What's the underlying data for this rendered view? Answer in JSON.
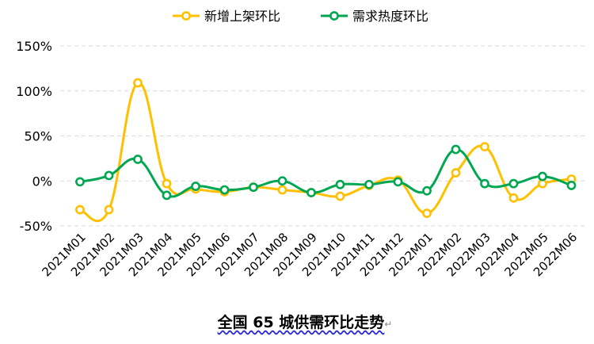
{
  "chart_data": {
    "type": "line",
    "title": "全国 65 城供需环比走势",
    "categories": [
      "2021M01",
      "2021M02",
      "2021M03",
      "2021M04",
      "2021M05",
      "2021M06",
      "2021M07",
      "2021M08",
      "2021M09",
      "2021M10",
      "2021M11",
      "2021M12",
      "2022M01",
      "2022M02",
      "2022M03",
      "2022M04",
      "2022M05",
      "2022M06"
    ],
    "yticks": [
      "150%",
      "100%",
      "50%",
      "0%",
      "-50%"
    ],
    "ylim": [
      -50,
      150
    ],
    "grid": true,
    "legend_position": "top",
    "series": [
      {
        "name": "新增上架环比",
        "color": "#FFC000",
        "values": [
          -32,
          -32,
          109,
          -3,
          -9,
          -12,
          -7,
          -10,
          -13,
          -17,
          -5,
          1,
          -36,
          9,
          38,
          -19,
          -3,
          2
        ]
      },
      {
        "name": "需求热度环比",
        "color": "#00A650",
        "values": [
          -1,
          6,
          24,
          -16,
          -6,
          -10,
          -7,
          0,
          -13,
          -4,
          -4,
          -1,
          -11,
          35,
          -3,
          -3,
          5,
          -5
        ]
      }
    ]
  }
}
